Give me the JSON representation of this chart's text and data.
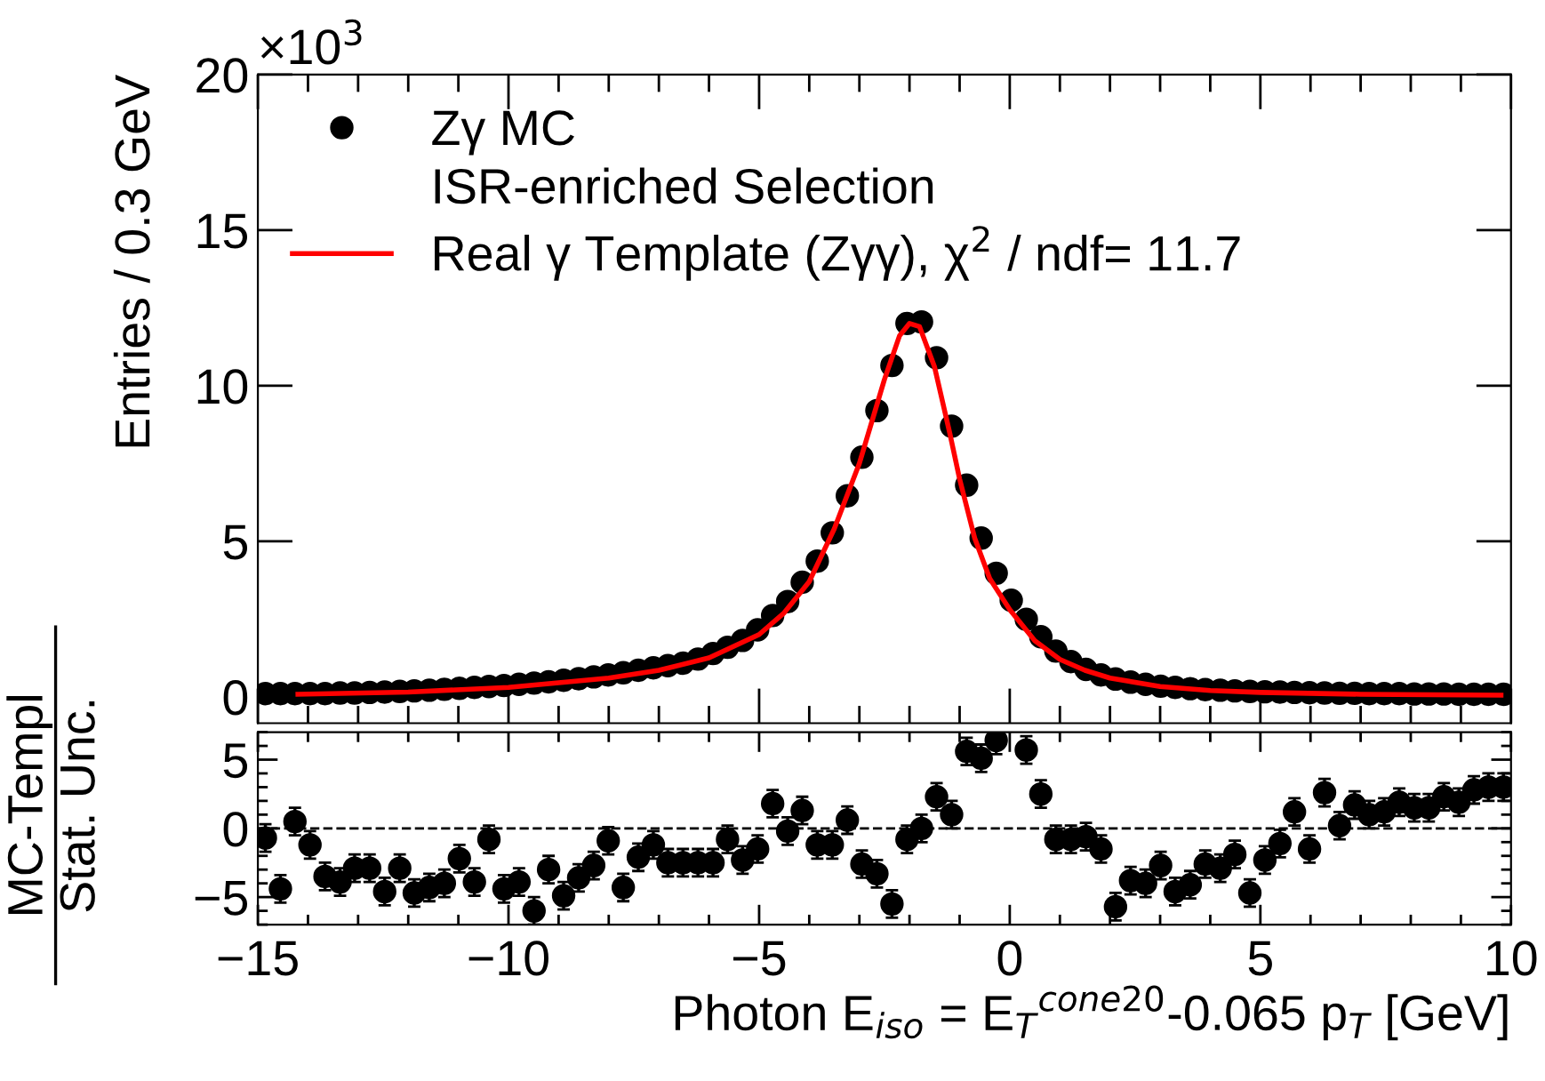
{
  "chart_data": [
    {
      "type": "scatter",
      "ylabel": "Entries / 0.3 GeV",
      "xlim": [
        -15,
        10
      ],
      "ylim": [
        -0.85,
        20
      ],
      "xticks": [
        -15,
        -10,
        -5,
        0,
        5,
        10
      ],
      "yticks": [
        0,
        5,
        10,
        15,
        20
      ],
      "tick_labels": "y",
      "legend": "top left",
      "annotations": [
        "×10$^{3}$",
        "ISR-enriched Selection"
      ],
      "series": [
        {
          "name": "Zγ MC",
          "marker": "circle",
          "color": "#000000",
          "x": [
            -14.85,
            -14.55,
            -14.26,
            -13.96,
            -13.66,
            -13.36,
            -13.07,
            -12.77,
            -12.47,
            -12.17,
            -11.88,
            -11.58,
            -11.28,
            -10.98,
            -10.68,
            -10.39,
            -10.09,
            -9.79,
            -9.49,
            -9.2,
            -8.9,
            -8.6,
            -8.3,
            -8.01,
            -7.71,
            -7.41,
            -7.11,
            -6.82,
            -6.52,
            -6.22,
            -5.92,
            -5.63,
            -5.33,
            -5.03,
            -4.73,
            -4.43,
            -4.14,
            -3.84,
            -3.54,
            -3.24,
            -2.95,
            -2.65,
            -2.35,
            -2.05,
            -1.76,
            -1.46,
            -1.16,
            -0.86,
            -0.57,
            -0.27,
            0.03,
            0.33,
            0.62,
            0.92,
            1.22,
            1.52,
            1.82,
            2.11,
            2.41,
            2.71,
            3.01,
            3.3,
            3.6,
            3.9,
            4.2,
            4.49,
            4.79,
            5.09,
            5.39,
            5.68,
            5.98,
            6.28,
            6.58,
            6.88,
            7.17,
            7.47,
            7.77,
            8.07,
            8.36,
            8.66,
            8.96,
            9.26,
            9.55,
            9.85
          ],
          "values": [
            0.1,
            0.1,
            0.1,
            0.1,
            0.1,
            0.12,
            0.12,
            0.14,
            0.15,
            0.17,
            0.19,
            0.21,
            0.24,
            0.27,
            0.3,
            0.33,
            0.36,
            0.4,
            0.44,
            0.48,
            0.53,
            0.58,
            0.64,
            0.7,
            0.77,
            0.85,
            0.93,
            1.0,
            1.08,
            1.21,
            1.39,
            1.59,
            1.81,
            2.15,
            2.61,
            3.06,
            3.68,
            4.36,
            5.27,
            6.46,
            7.7,
            9.2,
            10.65,
            12.0,
            12.05,
            10.9,
            8.7,
            6.8,
            5.1,
            3.97,
            3.1,
            2.49,
            1.93,
            1.47,
            1.13,
            0.88,
            0.7,
            0.57,
            0.47,
            0.4,
            0.34,
            0.3,
            0.26,
            0.23,
            0.21,
            0.19,
            0.17,
            0.16,
            0.15,
            0.14,
            0.13,
            0.12,
            0.11,
            0.11,
            0.1,
            0.1,
            0.1,
            0.09,
            0.09,
            0.09,
            0.08,
            0.08,
            0.08,
            0.08
          ]
        },
        {
          "name": "Real γ Template (Zγγ), χ$^{2}$ / ndf= 11.7",
          "type": "line",
          "color": "#ff0000",
          "x": [
            -14.2,
            -12,
            -10,
            -8,
            -7,
            -6,
            -5,
            -4.5,
            -4,
            -3.5,
            -3,
            -2.5,
            -2.2,
            -2.0,
            -1.8,
            -1.5,
            -1.2,
            -1.0,
            -0.7,
            -0.4,
            0,
            0.5,
            1,
            1.5,
            2,
            3,
            4,
            5,
            7,
            9.8
          ],
          "values": [
            0.08,
            0.15,
            0.3,
            0.6,
            0.85,
            1.25,
            2.0,
            2.7,
            3.7,
            5.4,
            7.5,
            10.2,
            11.6,
            12.0,
            11.9,
            10.6,
            8.5,
            7.0,
            5.1,
            3.8,
            2.8,
            1.8,
            1.2,
            0.85,
            0.6,
            0.33,
            0.2,
            0.14,
            0.08,
            0.05
          ]
        }
      ]
    },
    {
      "type": "scatter",
      "ylabel": "MC-Templ\nStat. Unc.",
      "xlabel": "Photon E$_{iso}$ = E$_{T}$$^{cone20}$-0.065 p$_{T}$ [GeV]",
      "xlim": [
        -15,
        10
      ],
      "ylim": [
        -7,
        7
      ],
      "xticks": [
        {
          "value": -15,
          "label": "−15"
        },
        {
          "value": -10,
          "label": "−10"
        },
        {
          "value": -5,
          "label": "−5"
        },
        0,
        5,
        10
      ],
      "yticks": [
        {
          "value": -5,
          "label": "−5"
        },
        0,
        5
      ],
      "marker": "circle",
      "ref_lines": [
        {
          "axis": "y",
          "value": 0,
          "line_style": "dashed",
          "color": "#000000"
        }
      ],
      "series": [
        {
          "color": "#000000",
          "x": [
            -14.85,
            -14.55,
            -14.26,
            -13.96,
            -13.66,
            -13.36,
            -13.07,
            -12.77,
            -12.47,
            -12.17,
            -11.88,
            -11.58,
            -11.28,
            -10.98,
            -10.68,
            -10.39,
            -10.09,
            -9.79,
            -9.49,
            -9.2,
            -8.9,
            -8.6,
            -8.3,
            -8.01,
            -7.71,
            -7.41,
            -7.11,
            -6.82,
            -6.52,
            -6.22,
            -5.92,
            -5.63,
            -5.33,
            -5.03,
            -4.73,
            -4.43,
            -4.14,
            -3.84,
            -3.54,
            -3.24,
            -2.95,
            -2.65,
            -2.35,
            -2.05,
            -1.76,
            -1.46,
            -1.16,
            -0.86,
            -0.57,
            -0.27,
            0.03,
            0.33,
            0.62,
            0.92,
            1.22,
            1.52,
            1.82,
            2.11,
            2.41,
            2.71,
            3.01,
            3.3,
            3.6,
            3.9,
            4.2,
            4.49,
            4.79,
            5.09,
            5.39,
            5.68,
            5.98,
            6.28,
            6.58,
            6.88,
            7.17,
            7.47,
            7.77,
            8.07,
            8.36,
            8.66,
            8.96,
            9.26,
            9.55,
            9.85
          ],
          "values": [
            -0.7,
            -4.4,
            0.5,
            -1.2,
            -3.5,
            -3.9,
            -2.9,
            -2.9,
            -4.6,
            -2.9,
            -4.7,
            -4.3,
            -4.0,
            -2.2,
            -3.9,
            -0.8,
            -4.4,
            -3.9,
            -6.0,
            -3.0,
            -4.9,
            -3.6,
            -2.7,
            -0.9,
            -4.3,
            -2.1,
            -1.2,
            -2.5,
            -2.5,
            -2.5,
            -2.5,
            -0.8,
            -2.3,
            -1.5,
            1.8,
            -0.2,
            1.3,
            -1.2,
            -1.2,
            0.6,
            -2.6,
            -3.3,
            -5.5,
            -0.8,
            0.0,
            2.3,
            1.0,
            5.6,
            5.1,
            6.4,
            null,
            5.7,
            2.5,
            -0.8,
            -0.8,
            -0.6,
            -1.5,
            -5.7,
            -3.8,
            -4.0,
            -2.7,
            -4.6,
            -4.1,
            -2.6,
            -2.9,
            -1.9,
            -4.7,
            -2.3,
            -1.1,
            1.2,
            -1.5,
            2.6,
            0.2,
            1.7,
            1.0,
            1.2,
            1.9,
            1.5,
            1.5,
            2.3,
            1.9,
            2.8,
            3.0,
            3.0
          ],
          "errors": [
            1,
            1,
            1,
            1,
            1,
            1,
            1,
            1,
            1,
            1,
            1,
            1,
            1,
            1,
            1,
            1,
            1,
            1,
            1,
            1,
            1,
            1,
            1,
            1,
            1,
            1,
            1,
            1,
            1,
            1,
            1,
            1,
            1,
            1,
            1,
            1,
            1,
            1,
            1,
            1,
            1,
            1,
            1,
            1,
            1,
            1,
            1,
            1,
            1,
            1,
            null,
            1,
            1,
            1,
            1,
            1,
            1,
            1,
            1,
            1,
            1,
            1,
            1,
            1,
            1,
            1,
            1,
            1,
            1,
            1,
            1,
            1,
            1,
            1,
            1,
            1,
            1,
            1,
            1,
            1,
            1,
            1,
            1,
            1
          ]
        }
      ]
    }
  ]
}
